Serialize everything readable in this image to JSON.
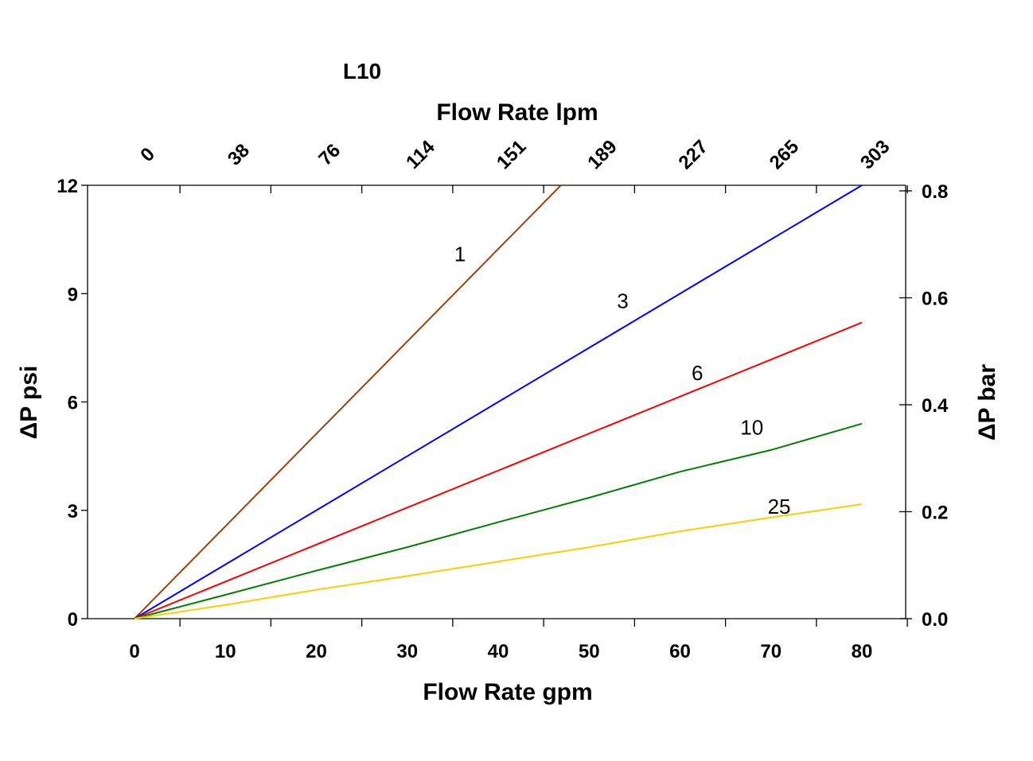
{
  "chart_data": {
    "type": "line",
    "title": "L10",
    "xlabel": "Flow Rate gpm",
    "x2label": "Flow Rate lpm",
    "ylabel": "ΔP psi",
    "y2label": "ΔP bar",
    "xlim": [
      -5,
      85
    ],
    "ylim": [
      0,
      12
    ],
    "y2lim": [
      0,
      0.8
    ],
    "x_ticks": [
      0,
      10,
      20,
      30,
      40,
      50,
      60,
      70,
      80
    ],
    "x_tick_labels": [
      "0",
      "10",
      "20",
      "30",
      "40",
      "50",
      "60",
      "70",
      "80"
    ],
    "x2_tick_labels": [
      "0",
      "38",
      "76",
      "114",
      "151",
      "189",
      "227",
      "265",
      "303"
    ],
    "y_ticks": [
      0,
      3,
      6,
      9,
      12
    ],
    "y_tick_labels": [
      "0",
      "3",
      "6",
      "9",
      "12"
    ],
    "y2_ticks": [
      0.0,
      0.2,
      0.4,
      0.6,
      0.8
    ],
    "y2_tick_labels": [
      "0.0",
      "0.2",
      "0.4",
      "0.6",
      "0.8"
    ],
    "grid": false,
    "series": [
      {
        "name": "1",
        "color": "#a0400a",
        "x": [
          0,
          46.9
        ],
        "y": [
          0,
          12
        ],
        "label_at": [
          35.8,
          10.1
        ]
      },
      {
        "name": "3",
        "color": "#0000ff",
        "x": [
          0,
          80
        ],
        "y": [
          0,
          12
        ],
        "label_at": [
          53.7,
          8.8
        ]
      },
      {
        "name": "6",
        "color": "#ff0000",
        "x": [
          0,
          80
        ],
        "y": [
          0,
          8.2
        ],
        "label_at": [
          61.9,
          6.8
        ]
      },
      {
        "name": "10",
        "color": "#008000",
        "x": [
          0,
          10,
          20,
          30,
          40,
          50,
          60,
          70,
          80
        ],
        "y": [
          0,
          0.66,
          1.33,
          1.98,
          2.67,
          3.35,
          4.07,
          4.67,
          5.4
        ],
        "label_at": [
          67.9,
          5.3
        ]
      },
      {
        "name": "25",
        "color": "#ffcc00",
        "x": [
          0,
          10,
          20,
          30,
          40,
          50,
          60,
          70,
          80
        ],
        "y": [
          0,
          0.38,
          0.8,
          1.18,
          1.58,
          1.98,
          2.42,
          2.8,
          3.17
        ],
        "label_at": [
          70.9,
          3.1
        ]
      }
    ]
  }
}
